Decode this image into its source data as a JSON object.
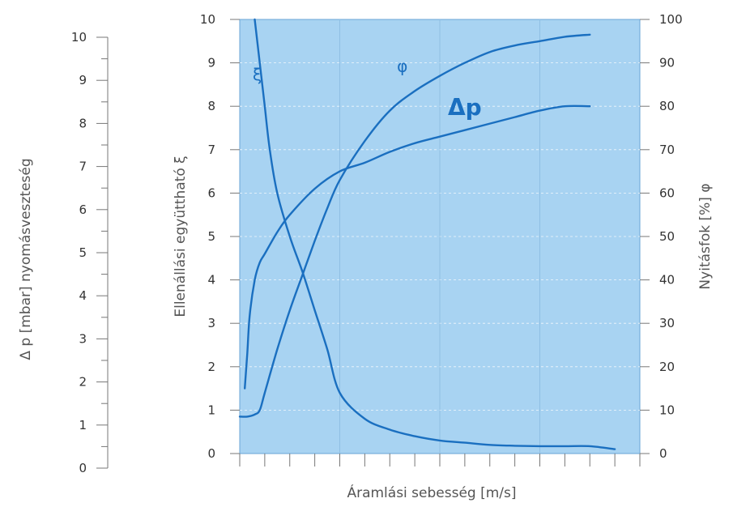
{
  "chart_data": {
    "type": "line",
    "xlabel": "Áramlási sebesség [m/s]",
    "x_ticks": [
      "",
      "",
      "",
      "",
      "",
      "",
      "",
      "",
      "",
      "",
      "",
      "",
      "",
      "",
      "",
      ""
    ],
    "left_outer_axis": {
      "label": "Δ p [mbar] nyomásveszteség",
      "range": [
        0,
        10
      ],
      "ticks": [
        "0",
        "1",
        "2",
        "3",
        "4",
        "5",
        "6",
        "7",
        "8",
        "9",
        "10"
      ]
    },
    "left_inner_axis": {
      "label": "Ellenállási együttható ξ",
      "range": [
        0,
        10
      ],
      "ticks": [
        "0",
        "1",
        "2",
        "3",
        "4",
        "5",
        "6",
        "7",
        "8",
        "9",
        "10"
      ]
    },
    "right_axis": {
      "label": "Nyitásfok [%] φ",
      "range": [
        0,
        100
      ],
      "ticks": [
        "0",
        "10",
        "20",
        "30",
        "40",
        "50",
        "60",
        "70",
        "80",
        "90",
        "100"
      ]
    },
    "x_range": [
      0,
      16
    ],
    "grid": true,
    "series": [
      {
        "name": "ξ",
        "axis": "left_inner",
        "x": [
          0.6,
          0.8,
          1.0,
          1.2,
          1.5,
          2.0,
          2.5,
          3.0,
          3.5,
          4.0,
          5.0,
          6.0,
          7.0,
          8.0,
          9.0,
          10.0,
          11.0,
          12.0,
          13.0,
          14.0,
          15.0
        ],
        "y": [
          10.0,
          9.0,
          8.0,
          7.0,
          6.0,
          5.0,
          4.2,
          3.3,
          2.4,
          1.4,
          0.8,
          0.55,
          0.4,
          0.3,
          0.25,
          0.2,
          0.18,
          0.17,
          0.17,
          0.17,
          0.1
        ]
      },
      {
        "name": "φ",
        "axis": "right",
        "x": [
          0.0,
          0.3,
          0.6,
          0.8,
          1.0,
          1.5,
          2.0,
          2.5,
          3.0,
          3.5,
          4.0,
          5.0,
          6.0,
          7.0,
          8.0,
          9.0,
          10.0,
          11.0,
          12.0,
          13.0,
          14.0
        ],
        "y": [
          8.5,
          8.5,
          9.0,
          10.0,
          14.0,
          24.0,
          33.0,
          41.0,
          49.0,
          56.5,
          63.0,
          72.0,
          79.0,
          83.5,
          87.0,
          90.0,
          92.5,
          94.0,
          95.0,
          96.0,
          96.5
        ]
      },
      {
        "name": "Δp",
        "axis": "left_outer",
        "x": [
          0.2,
          0.3,
          0.4,
          0.6,
          0.8,
          1.0,
          1.5,
          2.0,
          3.0,
          4.0,
          5.0,
          6.0,
          7.0,
          8.0,
          9.0,
          10.0,
          11.0,
          12.0,
          13.0,
          14.0
        ],
        "y": [
          1.5,
          2.3,
          3.2,
          4.0,
          4.4,
          4.6,
          5.1,
          5.5,
          6.1,
          6.5,
          6.7,
          6.95,
          7.15,
          7.3,
          7.45,
          7.6,
          7.75,
          7.9,
          8.0,
          8.0
        ]
      }
    ],
    "annotations": [
      {
        "text": "ξ",
        "series": "ξ",
        "x": 0.7,
        "y": 8.6
      },
      {
        "text": "φ",
        "series": "φ",
        "x": 6.5,
        "y": 88
      },
      {
        "text": "Δp",
        "series": "Δp",
        "x": 9.0,
        "y": 7.8
      }
    ]
  },
  "colors": {
    "plot_bg": "#a8d3f2",
    "curve": "#1a6fc0",
    "grid": "#ffffff",
    "axis": "#777777"
  }
}
